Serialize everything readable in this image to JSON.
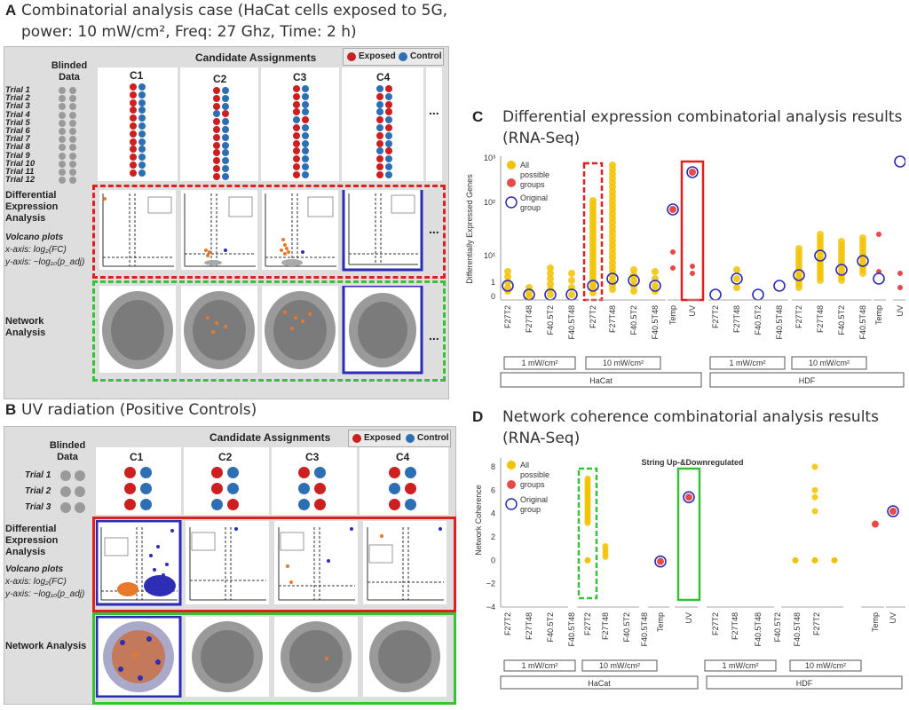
{
  "panelA": {
    "letter": "A",
    "title_line1": "Combinatorial analysis case (HaCat cells exposed to 5G,",
    "title_line2": "power: 10 mW/cm², Freq: 27 Ghz, Time: 2 h)",
    "blinded_data": "Blinded Data",
    "candidate_assignments": "Candidate Assignments",
    "legend_exposed": "Exposed",
    "legend_control": "Control",
    "columns": [
      "C1",
      "C2",
      "C3",
      "C4"
    ],
    "ellipsis": "...",
    "trials": [
      "Trial 1",
      "Trial 2",
      "Trial 3",
      "Trial 4",
      "Trial 5",
      "Trial 6",
      "Trial 7",
      "Trial 8",
      "Trial 9",
      "Trial 10",
      "Trial 11",
      "Trial 12"
    ],
    "diff_expr_label": "Differential Expression Analysis",
    "volcano_label": "Volcano plots",
    "x_axis_label": "x-axis: log₂(FC)",
    "y_axis_label": "y-axis: −log₁₀(p_adj)",
    "network_label": "Network Analysis"
  },
  "panelB": {
    "letter": "B",
    "title": "UV radiation (Positive Controls)",
    "blinded_data": "Blinded Data",
    "candidate_assignments": "Candidate Assignments",
    "legend_exposed": "Exposed",
    "legend_control": "Control",
    "columns": [
      "C1",
      "C2",
      "C3",
      "C4"
    ],
    "trials": [
      "Trial 1",
      "Trial 2",
      "Trial 3"
    ],
    "diff_expr_label": "Differential Expression Analysis",
    "volcano_label": "Volcano plots",
    "x_axis_label": "x-axis: log₂(FC)",
    "y_axis_label": "y-axis: −log₁₀(p_adj)",
    "network_label": "Network Analysis"
  },
  "panelC": {
    "letter": "C",
    "title_line1": "Differential expression combinatorial analysis results",
    "title_line2": "(RNA-Seq)",
    "ylabel": "Differentially Expressed Genes",
    "yticks": [
      "10³",
      "10²",
      "10¹",
      "1",
      "0"
    ],
    "legend_all": "All possible groups",
    "legend_original": "Original group",
    "xticks": [
      "F27T2",
      "F27T48",
      "F40.5T2",
      "F40.5T48",
      "F27T2",
      "F27T48",
      "F40.5T2",
      "F40.5T48",
      "Temp",
      "UV",
      "F27T2",
      "F27T48",
      "F40.5T2",
      "F40.5T48",
      "F27T2",
      "F27T48",
      "F40.5T2",
      "F40.5T48",
      "Temp",
      "UV"
    ],
    "group1": "1 mW/cm²",
    "group2": "10 mW/cm²",
    "group3": "1 mW/cm²",
    "group4": "10 mW/cm²",
    "cell_hacat": "HaCat",
    "cell_hdf": "HDF"
  },
  "panelD": {
    "letter": "D",
    "title_line1": "Network coherence combinatorial analysis results",
    "title_line2": "(RNA-Seq)",
    "ylabel": "Network Coherence",
    "yticks": [
      "8",
      "6",
      "4",
      "2",
      "0",
      "−2",
      "−4"
    ],
    "inner_title": "String Up-&Downregulated",
    "legend_all": "All possible groups",
    "legend_original": "Original group",
    "xticks": [
      "F27T2",
      "F27T48",
      "F40.5T2",
      "F40.5T48",
      "F27T2",
      "F27T48",
      "F40.5T2",
      "F40.5T48",
      "Temp",
      "UV",
      "F27T2",
      "F27T48",
      "F40.5T48",
      "F40.5T2",
      "F40.5T48",
      "F27T2",
      "Temp",
      "UV"
    ],
    "group1": "1 mW/cm²",
    "group2": "10 mW/cm²",
    "group3": "1 mW/cm²",
    "group4": "10 mW/cm²",
    "cell_hacat": "HaCat",
    "cell_hdf": "HDF"
  },
  "colors": {
    "exposed": "#cc1f1f",
    "control": "#2d6fb5",
    "gold": "#f2c200",
    "red": "#e84a4a",
    "blue": "#2b2bb5",
    "green": "#36c236",
    "dashred": "#e02020"
  }
}
